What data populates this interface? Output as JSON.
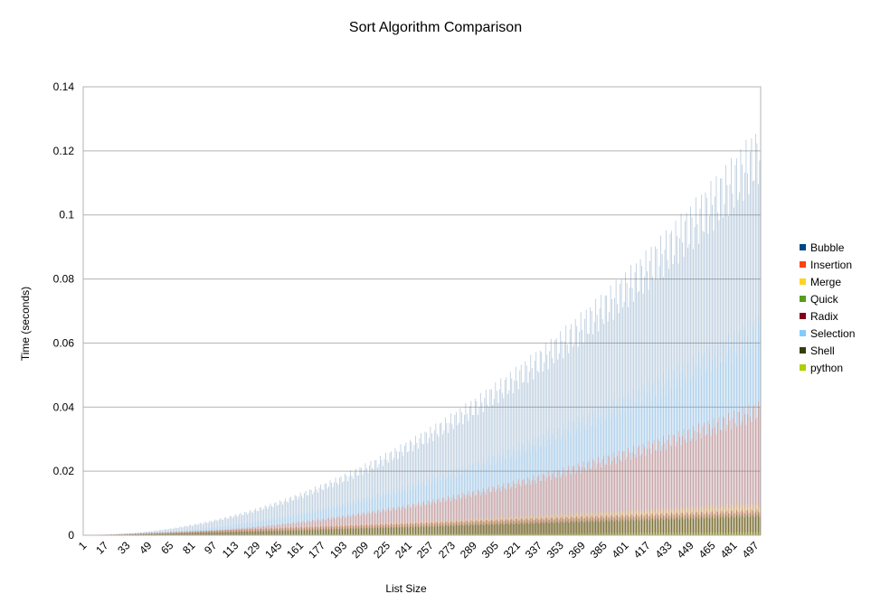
{
  "chart_data": {
    "type": "bar",
    "title": "Sort Algorithm Comparison",
    "xlabel": "List Size",
    "ylabel": "Time (seconds)",
    "ylim": [
      0,
      0.14
    ],
    "yticks": [
      "0",
      "0.02",
      "0.04",
      "0.06",
      "0.08",
      "0.1",
      "0.12",
      "0.14"
    ],
    "ytick_values": [
      0,
      0.02,
      0.04,
      0.06,
      0.08,
      0.1,
      0.12,
      0.14
    ],
    "x_range": [
      1,
      500
    ],
    "xticks": [
      "1",
      "17",
      "33",
      "49",
      "65",
      "81",
      "97",
      "113",
      "129",
      "145",
      "161",
      "177",
      "193",
      "209",
      "225",
      "241",
      "257",
      "273",
      "289",
      "305",
      "321",
      "337",
      "353",
      "369",
      "385",
      "401",
      "417",
      "433",
      "449",
      "465",
      "481",
      "497"
    ],
    "grid": true,
    "legend_position": "right",
    "series": [
      {
        "name": "Bubble",
        "color": "#004586",
        "values_at_max": 0.119,
        "curve": "quadratic"
      },
      {
        "name": "Insertion",
        "color": "#ff420e",
        "values_at_max": 0.039,
        "curve": "quadratic"
      },
      {
        "name": "Merge",
        "color": "#ffd320",
        "values_at_max": 0.0095,
        "curve": "nlogn"
      },
      {
        "name": "Quick",
        "color": "#579d1c",
        "values_at_max": 0.0065,
        "curve": "nlogn"
      },
      {
        "name": "Radix",
        "color": "#7e0021",
        "values_at_max": 0.0075,
        "curve": "linear"
      },
      {
        "name": "Selection",
        "color": "#83caff",
        "values_at_max": 0.064,
        "curve": "quadratic"
      },
      {
        "name": "Shell",
        "color": "#314004",
        "values_at_max": 0.006,
        "curve": "nlogn"
      },
      {
        "name": "python",
        "color": "#aecf00",
        "values_at_max": 0.001,
        "curve": "nlogn"
      }
    ]
  }
}
